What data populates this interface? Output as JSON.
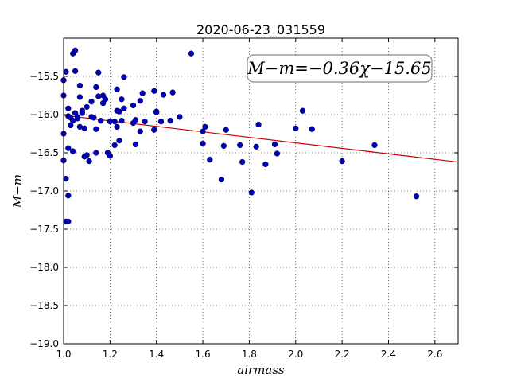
{
  "chart_data": {
    "type": "scatter",
    "title": "2020-06-23_031559",
    "xlabel": "airmass",
    "ylabel": "M−m",
    "xlim": [
      1.0,
      2.7
    ],
    "ylim": [
      -19.0,
      -15.0
    ],
    "x_ticks": [
      "1.0",
      "1.2",
      "1.4",
      "1.6",
      "1.8",
      "2.0",
      "2.2",
      "2.4",
      "2.6"
    ],
    "y_ticks": [
      "−15.5",
      "−16.0",
      "−16.5",
      "−17.0",
      "−17.5",
      "−18.0",
      "−18.5",
      "−19.0"
    ],
    "grid": true,
    "annotation": "M−m=−0.36χ−15.65",
    "fit": {
      "slope": -0.36,
      "intercept": -15.65,
      "x_range": [
        1.0,
        2.7
      ],
      "color": "#cc0000"
    },
    "point_color": "#0000bb",
    "points": [
      [
        1.0,
        -15.55
      ],
      [
        1.0,
        -15.75
      ],
      [
        1.0,
        -16.25
      ],
      [
        1.0,
        -16.6
      ],
      [
        1.01,
        -15.44
      ],
      [
        1.01,
        -16.84
      ],
      [
        1.01,
        -17.4
      ],
      [
        1.02,
        -15.92
      ],
      [
        1.02,
        -16.02
      ],
      [
        1.02,
        -16.44
      ],
      [
        1.02,
        -17.06
      ],
      [
        1.02,
        -17.4
      ],
      [
        1.03,
        -16.14
      ],
      [
        1.03,
        -16.04
      ],
      [
        1.04,
        -15.2
      ],
      [
        1.04,
        -16.08
      ],
      [
        1.04,
        -16.48
      ],
      [
        1.05,
        -15.16
      ],
      [
        1.05,
        -15.43
      ],
      [
        1.05,
        -15.98
      ],
      [
        1.06,
        -16.03
      ],
      [
        1.06,
        -16.05
      ],
      [
        1.07,
        -15.77
      ],
      [
        1.07,
        -15.62
      ],
      [
        1.07,
        -16.16
      ],
      [
        1.08,
        -15.95
      ],
      [
        1.08,
        -15.98
      ],
      [
        1.09,
        -16.18
      ],
      [
        1.09,
        -16.55
      ],
      [
        1.1,
        -15.9
      ],
      [
        1.1,
        -16.53
      ],
      [
        1.11,
        -16.61
      ],
      [
        1.12,
        -15.83
      ],
      [
        1.12,
        -16.03
      ],
      [
        1.13,
        -16.04
      ],
      [
        1.14,
        -15.64
      ],
      [
        1.14,
        -16.5
      ],
      [
        1.14,
        -16.19
      ],
      [
        1.15,
        -15.45
      ],
      [
        1.15,
        -15.76
      ],
      [
        1.16,
        -16.08
      ],
      [
        1.17,
        -15.85
      ],
      [
        1.17,
        -15.75
      ],
      [
        1.18,
        -15.8
      ],
      [
        1.19,
        -16.5
      ],
      [
        1.2,
        -16.09
      ],
      [
        1.2,
        -16.54
      ],
      [
        1.22,
        -16.09
      ],
      [
        1.22,
        -16.4
      ],
      [
        1.23,
        -15.67
      ],
      [
        1.23,
        -15.95
      ],
      [
        1.23,
        -16.16
      ],
      [
        1.24,
        -15.96
      ],
      [
        1.24,
        -16.34
      ],
      [
        1.25,
        -16.08
      ],
      [
        1.25,
        -15.8
      ],
      [
        1.26,
        -15.51
      ],
      [
        1.26,
        -15.92
      ],
      [
        1.3,
        -16.11
      ],
      [
        1.3,
        -15.88
      ],
      [
        1.31,
        -16.07
      ],
      [
        1.31,
        -16.39
      ],
      [
        1.33,
        -15.82
      ],
      [
        1.33,
        -16.22
      ],
      [
        1.34,
        -15.72
      ],
      [
        1.35,
        -16.09
      ],
      [
        1.39,
        -15.69
      ],
      [
        1.39,
        -16.2
      ],
      [
        1.4,
        -15.96
      ],
      [
        1.4,
        -15.97
      ],
      [
        1.42,
        -16.09
      ],
      [
        1.43,
        -15.74
      ],
      [
        1.46,
        -16.08
      ],
      [
        1.47,
        -15.71
      ],
      [
        1.5,
        -16.03
      ],
      [
        1.55,
        -15.2
      ],
      [
        1.6,
        -16.22
      ],
      [
        1.6,
        -16.38
      ],
      [
        1.61,
        -16.16
      ],
      [
        1.63,
        -16.59
      ],
      [
        1.68,
        -16.85
      ],
      [
        1.69,
        -16.41
      ],
      [
        1.7,
        -16.2
      ],
      [
        1.76,
        -16.4
      ],
      [
        1.77,
        -16.62
      ],
      [
        1.81,
        -17.02
      ],
      [
        1.83,
        -16.42
      ],
      [
        1.84,
        -16.13
      ],
      [
        1.87,
        -16.65
      ],
      [
        1.91,
        -16.39
      ],
      [
        1.92,
        -16.51
      ],
      [
        2.0,
        -16.18
      ],
      [
        2.03,
        -15.95
      ],
      [
        2.07,
        -16.19
      ],
      [
        2.2,
        -16.61
      ],
      [
        2.34,
        -16.4
      ],
      [
        2.52,
        -17.07
      ]
    ]
  }
}
